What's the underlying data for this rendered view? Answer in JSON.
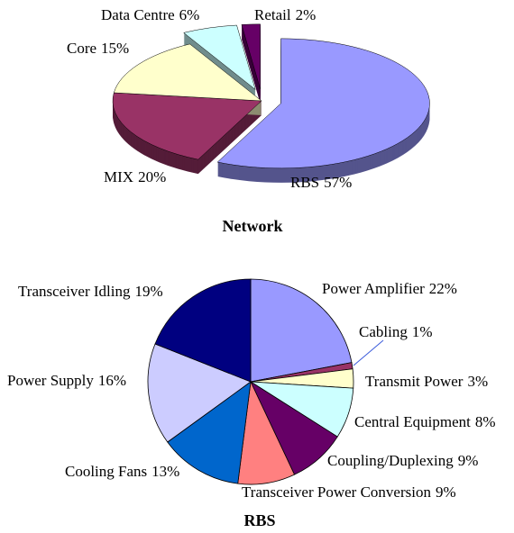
{
  "chart_data": [
    {
      "type": "pie3d",
      "title": "Network",
      "categories": [
        "RBS",
        "MIX",
        "Core",
        "Data Centre",
        "Retail"
      ],
      "values": [
        57,
        20,
        15,
        6,
        2
      ],
      "value_labels": [
        "57%",
        "20%",
        "15%",
        "6%",
        "2%"
      ],
      "colors": [
        "#9999ff",
        "#993366",
        "#ffffcc",
        "#ccffff",
        "#660066"
      ]
    },
    {
      "type": "pie",
      "title": "RBS",
      "categories": [
        "Power Amplifier",
        "Cabling",
        "Transmit Power",
        "Central Equipment",
        "Coupling/Duplexing",
        "Transceiver Power Conversion",
        "Cooling Fans",
        "Power Supply",
        "Transceiver Idling"
      ],
      "values": [
        22,
        1,
        3,
        8,
        9,
        9,
        13,
        16,
        19
      ],
      "value_labels": [
        "22%",
        "1%",
        "3%",
        "8%",
        "9%",
        "9%",
        "13%",
        "16%",
        "19%"
      ],
      "colors": [
        "#9999ff",
        "#993366",
        "#ffffcc",
        "#ccffff",
        "#660066",
        "#ff8080",
        "#0066cc",
        "#ccccff",
        "#000080"
      ]
    }
  ]
}
